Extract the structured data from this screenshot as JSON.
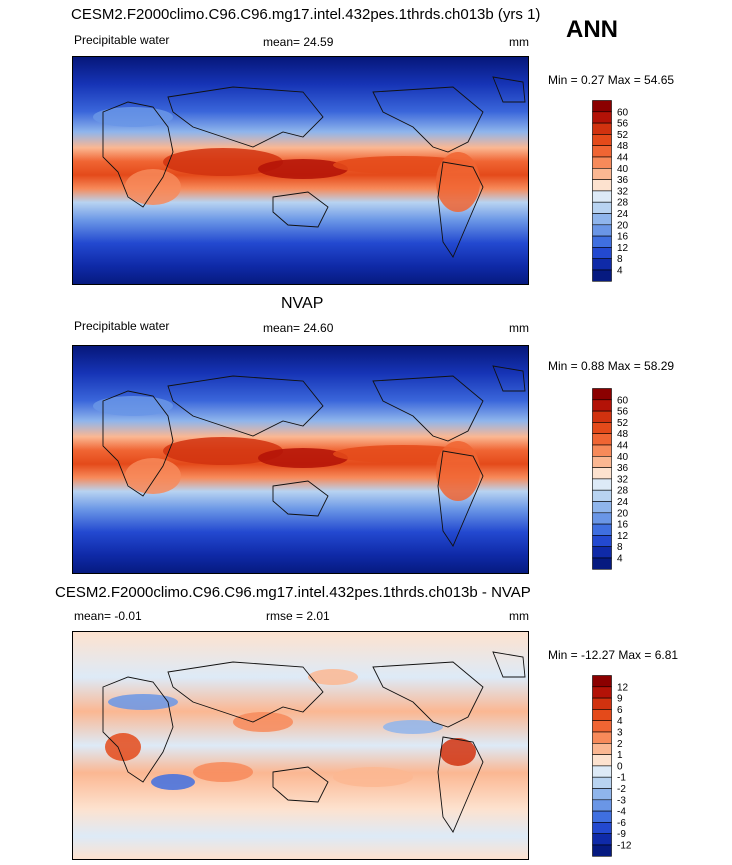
{
  "season": "ANN",
  "panels": [
    {
      "title": "CESM2.F2000climo.C96.C96.mg17.intel.432pes.1thrds.ch013b (yrs 1)",
      "variable": "Precipitable water",
      "stat1": "mean=  24.59",
      "stat2": "",
      "units": "mm",
      "minmax": "Min =   0.27 Max =  54.65",
      "colorbar": {
        "levels": [
          "60",
          "56",
          "52",
          "48",
          "44",
          "40",
          "36",
          "32",
          "28",
          "24",
          "20",
          "16",
          "12",
          "8",
          "4"
        ],
        "colors": [
          "#8b0000",
          "#b31207",
          "#d1320f",
          "#e44a1a",
          "#f06533",
          "#f78a5a",
          "#fbb792",
          "#fde2cf",
          "#ddeaf7",
          "#b8d3f1",
          "#8fb5ec",
          "#6a96e6",
          "#3f6fe0",
          "#2349d0",
          "#0f2aa8",
          "#061a80"
        ]
      },
      "map_palette": "full"
    },
    {
      "title": "NVAP",
      "variable": "Precipitable water",
      "stat1": "mean=  24.60",
      "stat2": "",
      "units": "mm",
      "minmax": "Min =   0.88 Max =  58.29",
      "colorbar": {
        "levels": [
          "60",
          "56",
          "52",
          "48",
          "44",
          "40",
          "36",
          "32",
          "28",
          "24",
          "20",
          "16",
          "12",
          "8",
          "4"
        ],
        "colors": [
          "#8b0000",
          "#b31207",
          "#d1320f",
          "#e44a1a",
          "#f06533",
          "#f78a5a",
          "#fbb792",
          "#fde2cf",
          "#ddeaf7",
          "#b8d3f1",
          "#8fb5ec",
          "#6a96e6",
          "#3f6fe0",
          "#2349d0",
          "#0f2aa8",
          "#061a80"
        ]
      },
      "map_palette": "full"
    },
    {
      "title": "CESM2.F2000climo.C96.C96.mg17.intel.432pes.1thrds.ch013b - NVAP",
      "variable": "",
      "stat1": "mean=  -0.01",
      "stat2": "rmse =   2.01",
      "units": "mm",
      "minmax": "Min = -12.27 Max =   6.81",
      "colorbar": {
        "levels": [
          "12",
          "9",
          "6",
          "4",
          "3",
          "2",
          "1",
          "0",
          "-1",
          "-2",
          "-3",
          "-4",
          "-6",
          "-9",
          "-12"
        ],
        "colors": [
          "#8b0000",
          "#b31207",
          "#d1320f",
          "#e44a1a",
          "#f06533",
          "#f78a5a",
          "#fbb792",
          "#fde2cf",
          "#ddeaf7",
          "#b8d3f1",
          "#8fb5ec",
          "#6a96e6",
          "#3f6fe0",
          "#2349d0",
          "#0f2aa8",
          "#061a80"
        ]
      },
      "map_palette": "diff"
    }
  ]
}
